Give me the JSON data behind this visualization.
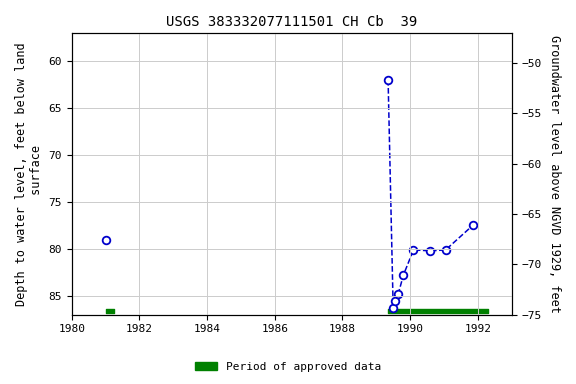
{
  "title": "USGS 383332077111501 CH Cb  39",
  "isolated_x": [
    1981.0
  ],
  "isolated_y": [
    79.0
  ],
  "connected_x": [
    1989.35,
    1989.5,
    1989.55,
    1989.65,
    1989.8,
    1990.1,
    1990.6,
    1991.05,
    1991.85
  ],
  "connected_y": [
    62.0,
    86.3,
    85.5,
    84.8,
    82.8,
    80.1,
    80.2,
    80.1,
    77.5
  ],
  "y_label_left": "Depth to water level, feet below land\n surface",
  "y_label_right": "Groundwater level above NGVD 1929, feet",
  "xlim": [
    1980,
    1993
  ],
  "ylim_left": [
    87,
    57
  ],
  "ylim_right": [
    -75,
    -47
  ],
  "xticks": [
    1980,
    1982,
    1984,
    1986,
    1988,
    1990,
    1992
  ],
  "yticks_left": [
    60,
    65,
    70,
    75,
    80,
    85
  ],
  "yticks_right": [
    -50,
    -55,
    -60,
    -65,
    -70,
    -75
  ],
  "line_color": "#0000cc",
  "marker_color": "#0000cc",
  "grid_color": "#cccccc",
  "bg_color": "#ffffff",
  "approved_bar1_x1": 1981.0,
  "approved_bar1_x2": 1981.25,
  "approved_bar2_x1": 1989.35,
  "approved_bar2_x2": 1992.3,
  "approved_bar_y_center": 86.65,
  "approved_bar_half_height": 0.22,
  "approved_color": "#008000",
  "legend_label": "Period of approved data",
  "title_fontsize": 10,
  "axis_label_fontsize": 8.5
}
